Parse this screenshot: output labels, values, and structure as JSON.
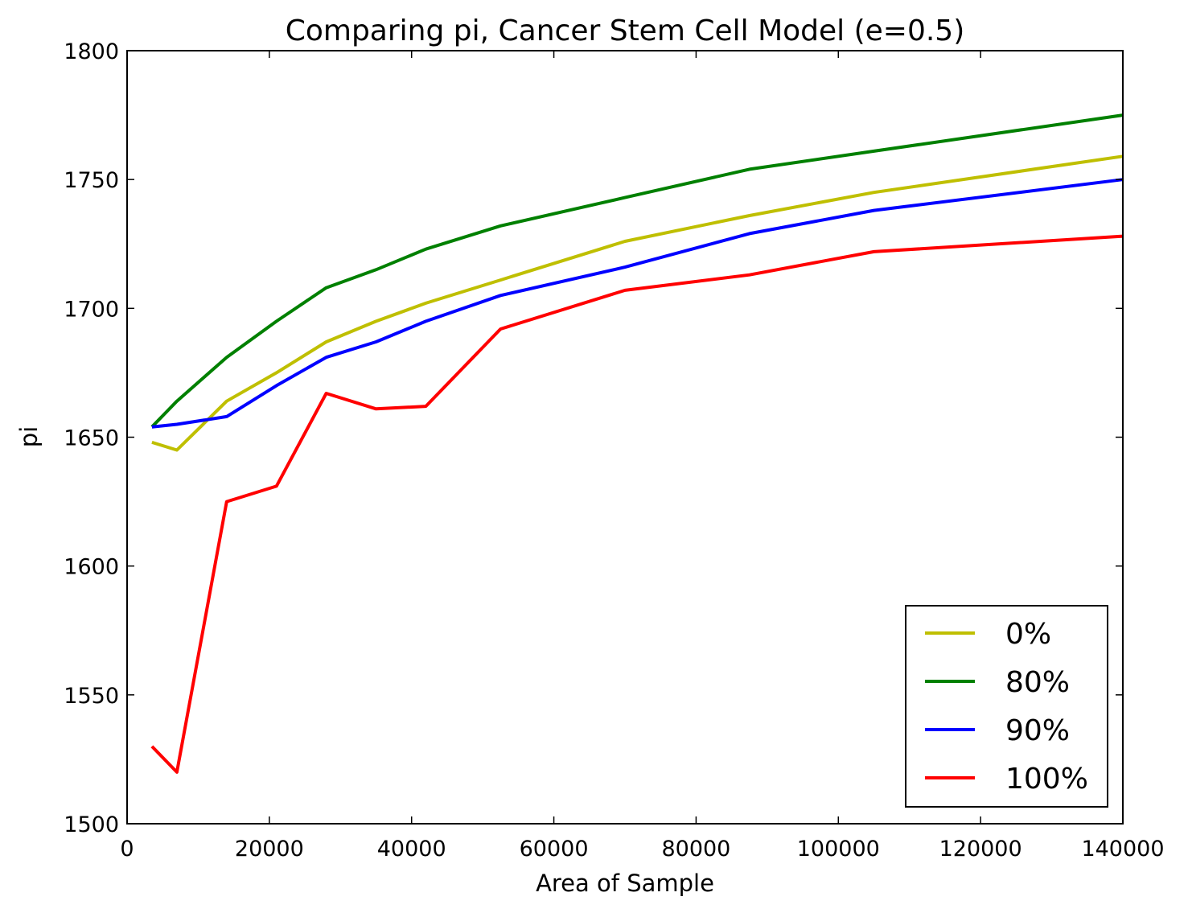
{
  "chart_data": {
    "type": "line",
    "title": "Comparing pi, Cancer Stem Cell Model (e=0.5)",
    "xlabel": "Area of Sample",
    "ylabel": "pi",
    "xlim": [
      0,
      140000
    ],
    "ylim": [
      1500,
      1800
    ],
    "xticks": [
      0,
      20000,
      40000,
      60000,
      80000,
      100000,
      120000,
      140000
    ],
    "yticks": [
      1500,
      1550,
      1600,
      1650,
      1700,
      1750,
      1800
    ],
    "grid": false,
    "legend_position": "lower-right",
    "x": [
      3500,
      7000,
      14000,
      21000,
      28000,
      35000,
      42000,
      52500,
      70000,
      87500,
      105000,
      140000
    ],
    "series": [
      {
        "name": "0%",
        "color": "#bfbf00",
        "values": [
          1648,
          1645,
          1664,
          1675,
          1687,
          1695,
          1702,
          1711,
          1726,
          1736,
          1745,
          1759
        ]
      },
      {
        "name": "80%",
        "color": "#008000",
        "values": [
          1654,
          1664,
          1681,
          1695,
          1708,
          1715,
          1723,
          1732,
          1743,
          1754,
          1761,
          1775
        ]
      },
      {
        "name": "90%",
        "color": "#0000ff",
        "values": [
          1654,
          1655,
          1658,
          1670,
          1681,
          1687,
          1695,
          1705,
          1716,
          1729,
          1738,
          1750
        ]
      },
      {
        "name": "100%",
        "color": "#ff0000",
        "values": [
          1530,
          1520,
          1625,
          1631,
          1667,
          1661,
          1662,
          1692,
          1707,
          1713,
          1722,
          1728
        ]
      }
    ]
  }
}
